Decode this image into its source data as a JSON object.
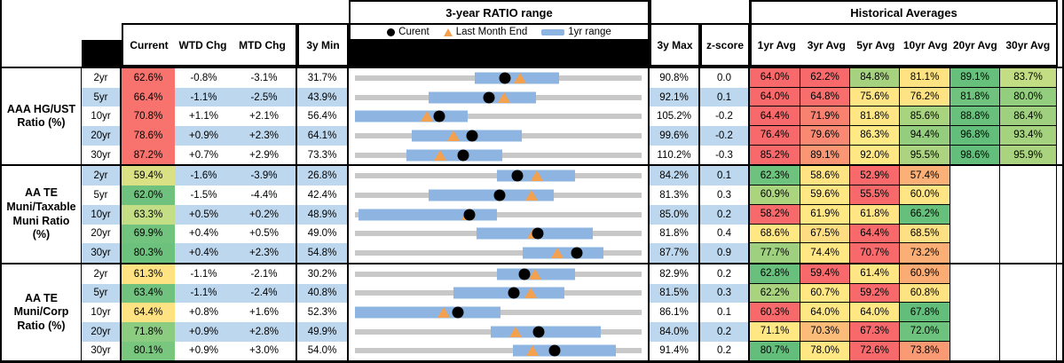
{
  "header": {
    "chart_title": "3-year RATIO range",
    "historical_title": "Historical Averages",
    "legend": {
      "current": "Curent",
      "last_month_end": "Last Month End",
      "one_yr_range": "1yr range"
    },
    "columns": {
      "current": "Current",
      "wtd": "WTD Chg",
      "mtd": "MTD Chg",
      "min3y": "3y Min",
      "max3y": "3y Max",
      "zscore": "z-score"
    },
    "avg_columns": [
      "1yr Avg",
      "3yr Avg",
      "5yr Avg",
      "10yr Avg",
      "20yr Avg",
      "30yr Avg"
    ]
  },
  "colors": {
    "row_alt_blue": "#BDD7EE",
    "range_bar_blue": "#8EB4E2",
    "track_gray": "#C8C8C8",
    "current_dot": "#000000",
    "last_month_triangle": "#F4A14F",
    "heat_red": "#F8696B",
    "heat_yellow": "#FFE884",
    "heat_green": "#63BE7B"
  },
  "chart_data": {
    "type": "table",
    "description": "Muni ratio table with embedded 3-year range bullet charts; dot = current, triangle = last month end, blue bar = 1yr range",
    "row_groups": [
      {
        "label": "AAA HG/UST Ratio (%)",
        "rows": [
          {
            "tenor": "2yr",
            "current": "62.6%",
            "current_bg": "#F8736D",
            "wtd": "-0.8%",
            "mtd": "-3.1%",
            "min3y": "31.7%",
            "max3y": "90.8%",
            "zscore": "0.0",
            "last_month_end": 65.7,
            "range_1yr": [
              56.4,
              73.8
            ],
            "avgs": [
              {
                "v": "64.0%",
                "bg": "#F8696B"
              },
              {
                "v": "62.2%",
                "bg": "#F8696B"
              },
              {
                "v": "84.8%",
                "bg": "#A6D27F"
              },
              {
                "v": "81.1%",
                "bg": "#FFE383"
              },
              {
                "v": "89.1%",
                "bg": "#66BF7B"
              },
              {
                "v": "83.7%",
                "bg": "#C3DD85"
              }
            ]
          },
          {
            "tenor": "5yr",
            "current": "66.4%",
            "current_bg": "#F8736D",
            "wtd": "-1.1%",
            "mtd": "-2.5%",
            "min3y": "43.9%",
            "max3y": "92.1%",
            "zscore": "0.1",
            "last_month_end": 68.9,
            "range_1yr": [
              56.3,
              74.3
            ],
            "avgs": [
              {
                "v": "64.0%",
                "bg": "#F8696B"
              },
              {
                "v": "64.8%",
                "bg": "#F86E6C"
              },
              {
                "v": "75.6%",
                "bg": "#FFE583"
              },
              {
                "v": "76.2%",
                "bg": "#FDE383"
              },
              {
                "v": "81.8%",
                "bg": "#70C37E"
              },
              {
                "v": "80.0%",
                "bg": "#93CD7E"
              }
            ]
          },
          {
            "tenor": "10yr",
            "current": "70.8%",
            "current_bg": "#F8736D",
            "wtd": "+1.1%",
            "mtd": "+2.1%",
            "min3y": "56.4%",
            "max3y": "105.2%",
            "zscore": "-0.2",
            "last_month_end": 68.7,
            "range_1yr": [
              56.4,
              75.6
            ],
            "avgs": [
              {
                "v": "64.4%",
                "bg": "#F8696B"
              },
              {
                "v": "71.9%",
                "bg": "#F8816F"
              },
              {
                "v": "81.8%",
                "bg": "#FFE684"
              },
              {
                "v": "85.6%",
                "bg": "#A8D37F"
              },
              {
                "v": "88.8%",
                "bg": "#69C07C"
              },
              {
                "v": "86.4%",
                "bg": "#9ED07F"
              }
            ]
          },
          {
            "tenor": "20yr",
            "current": "78.6%",
            "current_bg": "#F8736D",
            "wtd": "+0.9%",
            "mtd": "+2.3%",
            "min3y": "64.1%",
            "max3y": "99.6%",
            "zscore": "-0.2",
            "last_month_end": 76.3,
            "range_1yr": [
              71.1,
              84.8
            ],
            "avgs": [
              {
                "v": "76.4%",
                "bg": "#F8696B"
              },
              {
                "v": "79.6%",
                "bg": "#F98972"
              },
              {
                "v": "86.3%",
                "bg": "#FFE984"
              },
              {
                "v": "94.4%",
                "bg": "#95CD7E"
              },
              {
                "v": "96.8%",
                "bg": "#63BE7B"
              },
              {
                "v": "93.4%",
                "bg": "#A5D27F"
              }
            ]
          },
          {
            "tenor": "30yr",
            "current": "87.2%",
            "current_bg": "#F8736D",
            "wtd": "+0.7%",
            "mtd": "+2.9%",
            "min3y": "73.3%",
            "max3y": "110.2%",
            "zscore": "-0.3",
            "last_month_end": 84.3,
            "range_1yr": [
              79.9,
              92.3
            ],
            "avgs": [
              {
                "v": "85.2%",
                "bg": "#F8696B"
              },
              {
                "v": "89.1%",
                "bg": "#FA9673"
              },
              {
                "v": "92.0%",
                "bg": "#FFE884"
              },
              {
                "v": "95.5%",
                "bg": "#ACD480"
              },
              {
                "v": "98.6%",
                "bg": "#63BE7B"
              },
              {
                "v": "95.9%",
                "bg": "#A9D37F"
              }
            ]
          }
        ]
      },
      {
        "label": "AA TE Muni/Taxable Muni Ratio (%)",
        "rows": [
          {
            "tenor": "2yr",
            "current": "59.4%",
            "current_bg": "#D9E184",
            "wtd": "-1.6%",
            "mtd": "-3.9%",
            "min3y": "26.8%",
            "max3y": "84.2%",
            "zscore": "0.1",
            "last_month_end": 63.3,
            "range_1yr": [
              55.2,
              70.9
            ],
            "avgs": [
              {
                "v": "62.3%",
                "bg": "#6DC27D"
              },
              {
                "v": "58.6%",
                "bg": "#FFE383"
              },
              {
                "v": "52.9%",
                "bg": "#F8696B"
              },
              {
                "v": "57.4%",
                "bg": "#FBB077"
              },
              null,
              null
            ]
          },
          {
            "tenor": "5yr",
            "current": "62.0%",
            "current_bg": "#6FC27D",
            "wtd": "-1.5%",
            "mtd": "-4.4%",
            "min3y": "42.4%",
            "max3y": "81.3%",
            "zscore": "0.3",
            "last_month_end": 66.4,
            "range_1yr": [
              52.4,
              69.4
            ],
            "avgs": [
              {
                "v": "60.9%",
                "bg": "#ABD47F"
              },
              {
                "v": "59.6%",
                "bg": "#FFE884"
              },
              {
                "v": "55.5%",
                "bg": "#F8696B"
              },
              {
                "v": "60.0%",
                "bg": "#FFE583"
              },
              null,
              null
            ]
          },
          {
            "tenor": "10yr",
            "current": "63.3%",
            "current_bg": "#C4DE86",
            "wtd": "+0.5%",
            "mtd": "+0.2%",
            "min3y": "48.9%",
            "max3y": "85.0%",
            "zscore": "0.2",
            "last_month_end": 63.1,
            "range_1yr": [
              49.4,
              66.8
            ],
            "avgs": [
              {
                "v": "58.2%",
                "bg": "#F8696B"
              },
              {
                "v": "61.9%",
                "bg": "#FFE784"
              },
              {
                "v": "61.8%",
                "bg": "#FFE584"
              },
              {
                "v": "66.2%",
                "bg": "#66BF7B"
              },
              null,
              null
            ]
          },
          {
            "tenor": "20yr",
            "current": "69.9%",
            "current_bg": "#71C37E",
            "wtd": "+0.4%",
            "mtd": "+0.5%",
            "min3y": "49.0%",
            "max3y": "81.8%",
            "zscore": "0.4",
            "last_month_end": 69.4,
            "range_1yr": [
              62.9,
              76.2
            ],
            "avgs": [
              {
                "v": "68.6%",
                "bg": "#FFE884"
              },
              {
                "v": "67.5%",
                "bg": "#FEDD82"
              },
              {
                "v": "64.4%",
                "bg": "#F8696B"
              },
              {
                "v": "68.5%",
                "bg": "#FCE083"
              },
              null,
              null
            ]
          },
          {
            "tenor": "30yr",
            "current": "80.3%",
            "current_bg": "#6CC17C",
            "wtd": "+0.4%",
            "mtd": "+2.3%",
            "min3y": "54.8%",
            "max3y": "87.7%",
            "zscore": "0.9",
            "last_month_end": 78.0,
            "range_1yr": [
              74.1,
              83.3
            ],
            "avgs": [
              {
                "v": "77.7%",
                "bg": "#9FD07F"
              },
              {
                "v": "74.4%",
                "bg": "#FFE884"
              },
              {
                "v": "70.7%",
                "bg": "#F8696B"
              },
              {
                "v": "73.2%",
                "bg": "#FBAF76"
              },
              null,
              null
            ]
          }
        ]
      },
      {
        "label": "AA TE Muni/Corp Ratio (%)",
        "rows": [
          {
            "tenor": "2yr",
            "current": "61.3%",
            "current_bg": "#FFE383",
            "wtd": "-1.1%",
            "mtd": "-2.1%",
            "min3y": "30.2%",
            "max3y": "82.9%",
            "zscore": "0.2",
            "last_month_end": 63.4,
            "range_1yr": [
              56.3,
              70.7
            ],
            "avgs": [
              {
                "v": "62.8%",
                "bg": "#68C07C"
              },
              {
                "v": "59.4%",
                "bg": "#F8696B"
              },
              {
                "v": "61.4%",
                "bg": "#FFE684"
              },
              {
                "v": "60.9%",
                "bg": "#FBAC75"
              },
              null,
              null
            ]
          },
          {
            "tenor": "5yr",
            "current": "63.4%",
            "current_bg": "#70C27E",
            "wtd": "-1.1%",
            "mtd": "-2.4%",
            "min3y": "40.8%",
            "max3y": "81.5%",
            "zscore": "0.3",
            "last_month_end": 65.8,
            "range_1yr": [
              54.8,
              70.5
            ],
            "avgs": [
              {
                "v": "62.2%",
                "bg": "#A9D37F"
              },
              {
                "v": "60.7%",
                "bg": "#FFE784"
              },
              {
                "v": "59.2%",
                "bg": "#F8696B"
              },
              {
                "v": "60.8%",
                "bg": "#FEE383"
              },
              null,
              null
            ]
          },
          {
            "tenor": "10yr",
            "current": "64.4%",
            "current_bg": "#FFE383",
            "wtd": "+0.8%",
            "mtd": "+1.6%",
            "min3y": "52.3%",
            "max3y": "86.1%",
            "zscore": "0.1",
            "last_month_end": 62.8,
            "range_1yr": [
              52.3,
              69.5
            ],
            "avgs": [
              {
                "v": "60.3%",
                "bg": "#F8696B"
              },
              {
                "v": "64.0%",
                "bg": "#FFE884"
              },
              {
                "v": "64.0%",
                "bg": "#FFE884"
              },
              {
                "v": "67.8%",
                "bg": "#63BE7B"
              },
              null,
              null
            ]
          },
          {
            "tenor": "20yr",
            "current": "71.8%",
            "current_bg": "#8CCC81",
            "wtd": "+0.9%",
            "mtd": "+2.8%",
            "min3y": "49.9%",
            "max3y": "84.0%",
            "zscore": "0.2",
            "last_month_end": 69.0,
            "range_1yr": [
              66.1,
              79.1
            ],
            "avgs": [
              {
                "v": "71.1%",
                "bg": "#FFE884"
              },
              {
                "v": "70.3%",
                "bg": "#FBBC7A"
              },
              {
                "v": "67.3%",
                "bg": "#F8696B"
              },
              {
                "v": "72.0%",
                "bg": "#6DC27D"
              },
              null,
              null
            ]
          },
          {
            "tenor": "30yr",
            "current": "80.1%",
            "current_bg": "#79C67E",
            "wtd": "+0.9%",
            "mtd": "+3.0%",
            "min3y": "54.0%",
            "max3y": "91.4%",
            "zscore": "0.2",
            "last_month_end": 77.1,
            "range_1yr": [
              74.6,
              88.0
            ],
            "avgs": [
              {
                "v": "80.7%",
                "bg": "#63BE7B"
              },
              {
                "v": "78.0%",
                "bg": "#FFE884"
              },
              {
                "v": "72.6%",
                "bg": "#F8696B"
              },
              {
                "v": "73.8%",
                "bg": "#FA9A74"
              },
              null,
              null
            ]
          }
        ]
      }
    ]
  }
}
